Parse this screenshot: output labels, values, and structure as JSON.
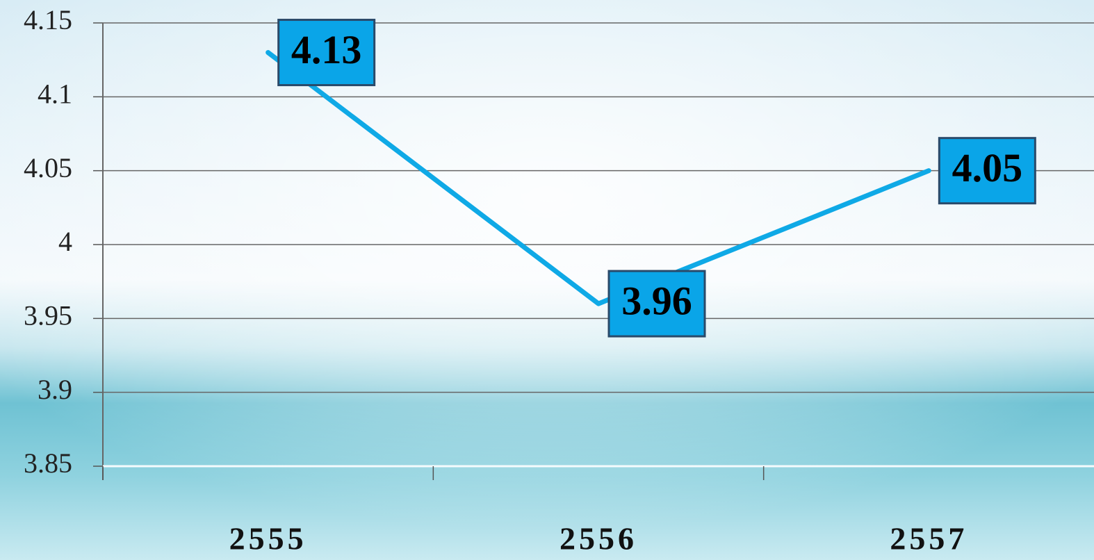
{
  "chart_data": {
    "type": "line",
    "categories": [
      "2555",
      "2556",
      "2557"
    ],
    "values": [
      4.13,
      3.96,
      4.05
    ],
    "color": "#0fa9e6",
    "ylim": [
      3.85,
      4.15
    ],
    "yticks": [
      3.85,
      3.9,
      3.95,
      4,
      4.05,
      4.1,
      4.15
    ],
    "grid": true
  }
}
